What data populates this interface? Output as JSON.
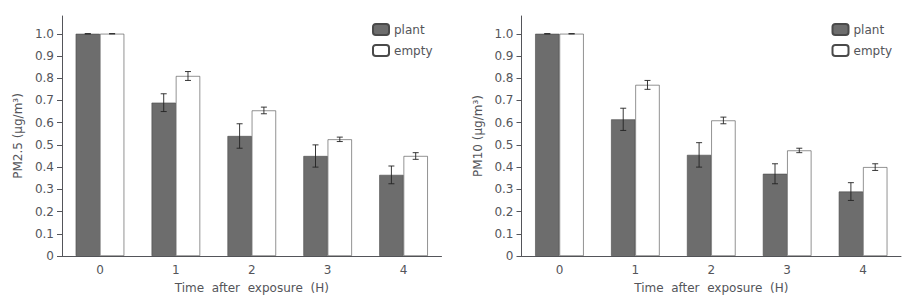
{
  "chart_data": [
    {
      "type": "bar",
      "categories": [
        "0",
        "1",
        "2",
        "3",
        "4"
      ],
      "series": [
        {
          "name": "plant",
          "color": "#6d6d6d",
          "values": [
            1.0,
            0.69,
            0.54,
            0.45,
            0.365
          ],
          "errors": [
            0.0,
            0.04,
            0.055,
            0.05,
            0.04
          ]
        },
        {
          "name": "empty",
          "color": "#ffffff",
          "values": [
            1.0,
            0.81,
            0.655,
            0.525,
            0.45
          ],
          "errors": [
            0.0,
            0.02,
            0.015,
            0.01,
            0.015
          ]
        }
      ],
      "xlabel": "Time  after  exposure  (H)",
      "ylabel": "PM2.5 (μg/m³)",
      "ylim": [
        0,
        1.08
      ],
      "yticks": [
        0,
        0.1,
        0.2,
        0.3,
        0.4,
        0.5,
        0.6,
        0.7,
        0.8,
        0.9,
        {
          "value": 1.0,
          "label": "1.0"
        }
      ],
      "legend": "upper right",
      "grid": false
    },
    {
      "type": "bar",
      "categories": [
        "0",
        "1",
        "2",
        "3",
        "4"
      ],
      "series": [
        {
          "name": "plant",
          "color": "#6d6d6d",
          "values": [
            1.0,
            0.615,
            0.455,
            0.37,
            0.29
          ],
          "errors": [
            0.0,
            0.05,
            0.055,
            0.045,
            0.04
          ]
        },
        {
          "name": "empty",
          "color": "#ffffff",
          "values": [
            1.0,
            0.77,
            0.61,
            0.475,
            0.4
          ],
          "errors": [
            0.0,
            0.02,
            0.015,
            0.01,
            0.015
          ]
        }
      ],
      "xlabel": "Time  after  exposure  (H)",
      "ylabel": "PM10 (μg/m³)",
      "ylim": [
        0,
        1.08
      ],
      "yticks": [
        0,
        0.1,
        0.2,
        0.3,
        0.4,
        0.5,
        0.6,
        0.7,
        0.8,
        0.9,
        {
          "value": 1.0,
          "label": "1.0"
        }
      ],
      "legend": "upper right",
      "grid": false
    }
  ]
}
